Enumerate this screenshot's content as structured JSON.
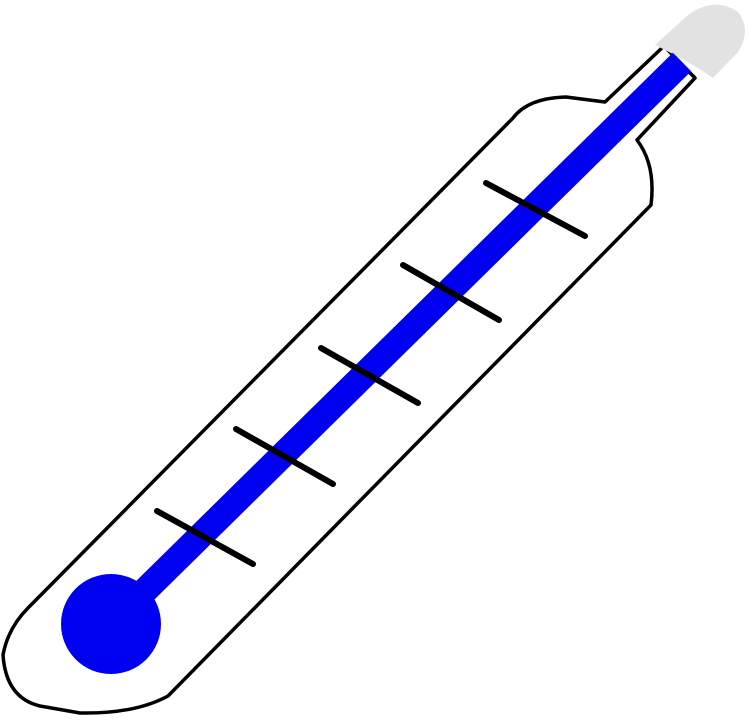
{
  "illustration": {
    "icon": "thermometer-icon",
    "level": 0.95,
    "tick_count": 5
  },
  "colors": {
    "background": "#ffffff",
    "glass": "#ffffff",
    "outline": "#000000",
    "mercury": "#0000f0",
    "cap": "#e2e2e2"
  }
}
